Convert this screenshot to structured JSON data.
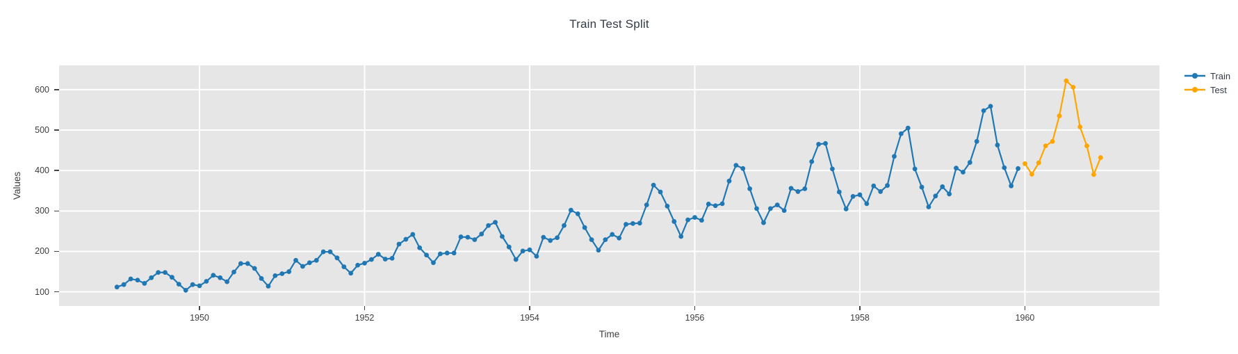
{
  "title": "Train Test Split",
  "axes": {
    "x_title": "Time",
    "y_title": "Values"
  },
  "legend": {
    "items": [
      {
        "label": "Train",
        "color": "#1f77b4"
      },
      {
        "label": "Test",
        "color": "#ffa500"
      }
    ]
  },
  "colors": {
    "plot_background": "#e6e6e6",
    "gridline": "#ffffff",
    "tick_text": "#3d3d3d",
    "train": "#1f77b4",
    "test": "#ffa500"
  },
  "chart_data": {
    "type": "line",
    "title": "Train Test Split",
    "xlabel": "Time",
    "ylabel": "Values",
    "x_unit": "months since Jan 1949",
    "xticks": [
      {
        "label": "1950",
        "index": 12
      },
      {
        "label": "1952",
        "index": 36
      },
      {
        "label": "1954",
        "index": 60
      },
      {
        "label": "1956",
        "index": 84
      },
      {
        "label": "1958",
        "index": 108
      },
      {
        "label": "1960",
        "index": 132
      }
    ],
    "yticks": [
      100,
      200,
      300,
      400,
      500,
      600
    ],
    "ylim": [
      65,
      660
    ],
    "grid": true,
    "legend_position": "outside-top-right",
    "marker_mode": "lines+markers",
    "series": [
      {
        "name": "Train",
        "color": "#1f77b4",
        "start_index": 0,
        "values": [
          112,
          118,
          132,
          129,
          121,
          135,
          148,
          148,
          136,
          119,
          104,
          118,
          115,
          126,
          141,
          135,
          125,
          149,
          170,
          170,
          158,
          133,
          114,
          140,
          145,
          150,
          178,
          163,
          172,
          178,
          199,
          199,
          184,
          162,
          146,
          166,
          171,
          180,
          193,
          181,
          183,
          218,
          230,
          242,
          209,
          191,
          172,
          194,
          196,
          196,
          236,
          235,
          229,
          243,
          264,
          272,
          237,
          211,
          180,
          201,
          204,
          188,
          235,
          227,
          234,
          264,
          302,
          293,
          259,
          229,
          203,
          229,
          242,
          233,
          267,
          269,
          270,
          315,
          364,
          347,
          312,
          274,
          237,
          278,
          284,
          277,
          317,
          313,
          318,
          374,
          413,
          405,
          355,
          306,
          271,
          306,
          315,
          301,
          356,
          348,
          355,
          422,
          465,
          467,
          404,
          347,
          305,
          336,
          340,
          318,
          362,
          348,
          363,
          435,
          491,
          505,
          404,
          359,
          310,
          337,
          360,
          342,
          406,
          396,
          420,
          472,
          548,
          559,
          463,
          407,
          362,
          405
        ]
      },
      {
        "name": "Test",
        "color": "#ffa500",
        "start_index": 132,
        "values": [
          417,
          391,
          419,
          461,
          472,
          535,
          622,
          606,
          508,
          461,
          390,
          432
        ]
      }
    ]
  }
}
